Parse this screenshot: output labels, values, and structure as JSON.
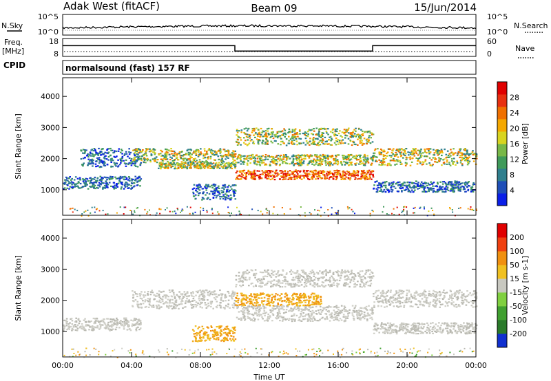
{
  "header": {
    "station": "Adak West (fitACF)",
    "beam": "Beam 09",
    "date": "15/Jun/2014"
  },
  "side_labels": {
    "nsky": "N.Sky",
    "nsearch": "N.Search",
    "freq": "Freq.",
    "freq_unit": "[MHz]",
    "cpid": "CPID",
    "nave": "Nave"
  },
  "noise_panel": {
    "left_ticks": [
      "10^5",
      "10^0"
    ],
    "right_ticks": [
      "10^5",
      "10^0"
    ]
  },
  "freq_panel": {
    "left_ticks": [
      "18",
      "8"
    ],
    "right_ticks": [
      "60",
      "0"
    ],
    "freq_steps": [
      {
        "from_hour": 0,
        "to_hour": 10,
        "value_mhz": 14
      },
      {
        "from_hour": 10,
        "to_hour": 18,
        "value_mhz": 11
      },
      {
        "from_hour": 18,
        "to_hour": 24,
        "value_mhz": 14
      }
    ]
  },
  "cpid_text": "normalsound (fast) 157 RF",
  "chart_data": [
    {
      "type": "heatmap",
      "title": "Power",
      "xlabel": "",
      "ylabel": "Slant Range [km]",
      "x_ticks": [
        "00:00",
        "04:00",
        "08:00",
        "12:00",
        "16:00",
        "20:00",
        "00:00"
      ],
      "y_ticks": [
        "1000",
        "2000",
        "3000",
        "4000"
      ],
      "xlim_hours": [
        0,
        24
      ],
      "ylim_km": [
        180,
        4600
      ],
      "colorbar": {
        "label": "Power [dB]",
        "ticks": [
          "4",
          "8",
          "12",
          "16",
          "20",
          "24",
          "28"
        ],
        "colors": [
          "#0a1fe8",
          "#1f4fb8",
          "#2f7f8e",
          "#3f9a5a",
          "#78b848",
          "#d8d420",
          "#f5a800",
          "#f07000",
          "#e83010",
          "#e00000"
        ]
      },
      "echo_bands": [
        {
          "t": [
            0,
            4.5
          ],
          "km": [
            1050,
            1450
          ],
          "level": "low"
        },
        {
          "t": [
            1,
            4.5
          ],
          "km": [
            1750,
            2350
          ],
          "level": "low"
        },
        {
          "t": [
            4,
            10
          ],
          "km": [
            1900,
            2350
          ],
          "level": "mid"
        },
        {
          "t": [
            5.5,
            10
          ],
          "km": [
            1700,
            1900
          ],
          "level": "mid"
        },
        {
          "t": [
            7.5,
            10
          ],
          "km": [
            700,
            1200
          ],
          "level": "low"
        },
        {
          "t": [
            10,
            18
          ],
          "km": [
            1350,
            1650
          ],
          "level": "high"
        },
        {
          "t": [
            10,
            18
          ],
          "km": [
            1800,
            2150
          ],
          "level": "mid"
        },
        {
          "t": [
            10,
            18
          ],
          "km": [
            2450,
            3000
          ],
          "level": "mid"
        },
        {
          "t": [
            18,
            24
          ],
          "km": [
            1800,
            2350
          ],
          "level": "mid"
        },
        {
          "t": [
            18,
            24
          ],
          "km": [
            950,
            1300
          ],
          "level": "low"
        }
      ]
    },
    {
      "type": "heatmap",
      "title": "Velocity",
      "xlabel": "Time UT",
      "ylabel": "Slant Range [km]",
      "x_ticks": [
        "00:00",
        "04:00",
        "08:00",
        "12:00",
        "16:00",
        "20:00",
        "00:00"
      ],
      "y_ticks": [
        "1000",
        "2000",
        "3000",
        "4000"
      ],
      "xlim_hours": [
        0,
        24
      ],
      "ylim_km": [
        180,
        4600
      ],
      "colorbar": {
        "label": "Velocity [m s-1]",
        "ticks": [
          "200",
          "100",
          "50",
          "15",
          "-15",
          "-50",
          "-100",
          "-200"
        ],
        "colors": [
          "#1030d0",
          "#2a7a2a",
          "#40a030",
          "#80d040",
          "#c8c8c0",
          "#f0c020",
          "#f09010",
          "#f04010",
          "#e00000"
        ]
      },
      "echo_bands": [
        {
          "t": [
            0,
            4.5
          ],
          "km": [
            1050,
            1450
          ],
          "level": "ground"
        },
        {
          "t": [
            4,
            10
          ],
          "km": [
            1750,
            2350
          ],
          "level": "ground"
        },
        {
          "t": [
            7.5,
            10
          ],
          "km": [
            700,
            1200
          ],
          "level": "away"
        },
        {
          "t": [
            10,
            18
          ],
          "km": [
            1350,
            1850
          ],
          "level": "ground"
        },
        {
          "t": [
            10,
            15
          ],
          "km": [
            1850,
            2250
          ],
          "level": "away"
        },
        {
          "t": [
            10,
            18
          ],
          "km": [
            2450,
            3000
          ],
          "level": "ground"
        },
        {
          "t": [
            18,
            24
          ],
          "km": [
            1800,
            2350
          ],
          "level": "ground"
        },
        {
          "t": [
            18,
            24
          ],
          "km": [
            950,
            1300
          ],
          "level": "ground"
        }
      ]
    }
  ]
}
